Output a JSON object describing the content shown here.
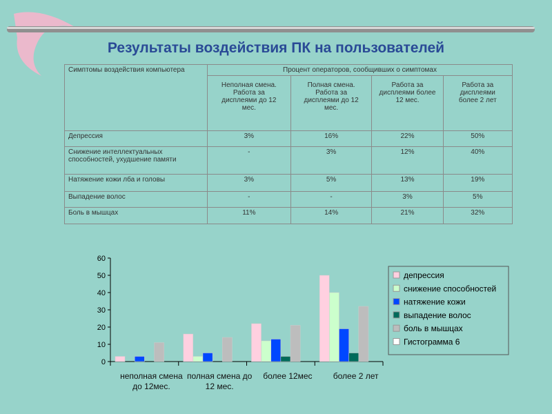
{
  "title": "Результаты воздействия ПК на пользователей",
  "table": {
    "header": {
      "symptoms": "Симптомы воздействия компьютера",
      "percent": "Процент операторов, сообщивших о симптомах",
      "columns": [
        "Неполная смена. Работа за дисплеями до 12 мес.",
        "Полная смена. Работа за дисплеями до 12 мес.",
        "Работа за дисплеями более 12 мес.",
        "Работа за дисплеями более 2 лет"
      ]
    },
    "rows": [
      [
        "Депрессия",
        "3%",
        "16%",
        "22%",
        "50%"
      ],
      [
        "Снижение интеллектуальных способностей, ухудшение памяти",
        "-",
        "3%",
        "12%",
        "40%"
      ],
      [
        "Натяжение кожи лба и головы",
        "3%",
        "5%",
        "13%",
        "19%"
      ],
      [
        "Выпадение волос",
        "-",
        "-",
        "3%",
        "5%"
      ],
      [
        "Боль в мышцах",
        "11%",
        "14%",
        "21%",
        "32%"
      ]
    ]
  },
  "chart_data": {
    "type": "bar",
    "categories": [
      "неполная смена до 12мес.",
      "полная смена до 12 мес.",
      "более 12мес",
      "более 2 лет"
    ],
    "series": [
      {
        "name": "депрессия",
        "color": "#ffd0e0",
        "values": [
          3,
          16,
          22,
          50
        ]
      },
      {
        "name": "снижение способностей",
        "color": "#ccffcc",
        "values": [
          null,
          3,
          12,
          40
        ]
      },
      {
        "name": "натяжение кожи",
        "color": "#0047ff",
        "values": [
          3,
          5,
          13,
          19
        ]
      },
      {
        "name": "выпадение волос",
        "color": "#006a5a",
        "values": [
          null,
          null,
          3,
          5
        ]
      },
      {
        "name": "боль в мышцах",
        "color": "#bdbdbd",
        "values": [
          11,
          14,
          21,
          32
        ]
      },
      {
        "name": "Гистограмма 6",
        "color": "#ffffff",
        "values": [
          null,
          null,
          null,
          null
        ]
      }
    ],
    "ylim": [
      0,
      60
    ],
    "yticks": [
      0,
      10,
      20,
      30,
      40,
      50,
      60
    ]
  }
}
